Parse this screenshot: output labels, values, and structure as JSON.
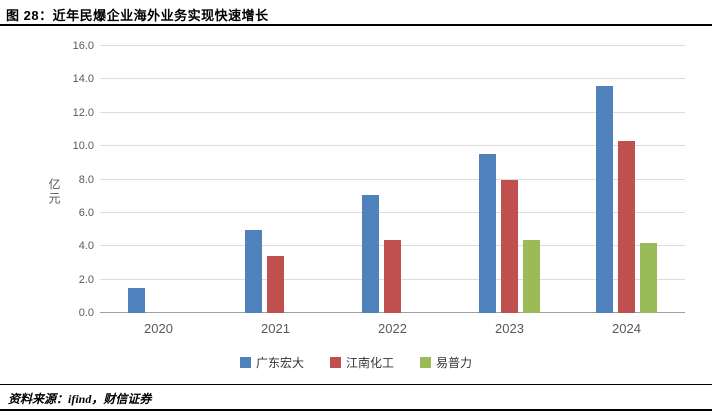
{
  "header": {
    "title": "图 28：近年民爆企业海外业务实现快速增长"
  },
  "chart_data": {
    "type": "bar",
    "categories": [
      "2020",
      "2021",
      "2022",
      "2023",
      "2024"
    ],
    "series": [
      {
        "name": "广东宏大",
        "color": "#4F81BD",
        "values": [
          1.5,
          5.0,
          7.1,
          9.5,
          13.6
        ]
      },
      {
        "name": "江南化工",
        "color": "#C0504D",
        "values": [
          null,
          3.4,
          4.4,
          8.0,
          10.3
        ]
      },
      {
        "name": "易普力",
        "color": "#9BBB59",
        "values": [
          null,
          null,
          null,
          4.4,
          4.2
        ]
      }
    ],
    "title": "",
    "xlabel": "",
    "ylabel": "亿元",
    "ylim": [
      0,
      16
    ],
    "ytick_step": 2,
    "ytick_labels": [
      "0.0",
      "2.0",
      "4.0",
      "6.0",
      "8.0",
      "10.0",
      "12.0",
      "14.0",
      "16.0"
    ],
    "grid": true,
    "legend_position": "bottom"
  },
  "footer": {
    "source": "资料来源：ifind，财信证券"
  }
}
